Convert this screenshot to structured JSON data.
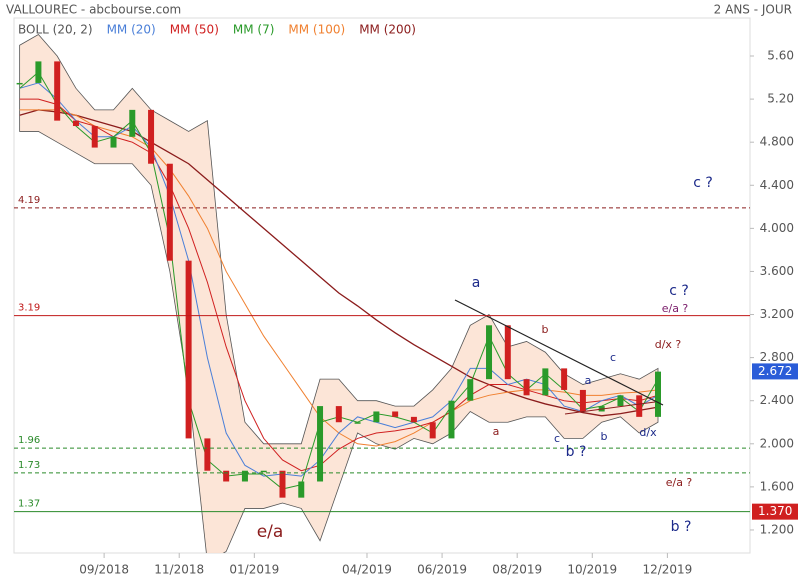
{
  "chart_data": {
    "type": "stock",
    "title": "VALLOUREC - abcbourse.com",
    "subtitle": "2 ANS - JOUR",
    "x": [
      5.75,
      6.25,
      6.75,
      7.25,
      7.75,
      8.25,
      8.75,
      9.25,
      9.75,
      10.25,
      10.75,
      11.25,
      11.75,
      12.25,
      12.75,
      13.25,
      13.75,
      14.25,
      14.75,
      15.25,
      15.75,
      16.25,
      16.75,
      17.25,
      17.75,
      18.25,
      18.75,
      19.25,
      19.75,
      20.25,
      20.75,
      21.25,
      21.75,
      22.25,
      22.75
    ],
    "xlim": [
      5.6,
      25.2
    ],
    "xticks": [
      {
        "value": 8,
        "label": "09/2018"
      },
      {
        "value": 10,
        "label": "11/2018"
      },
      {
        "value": 12,
        "label": "01/2019"
      },
      {
        "value": 15,
        "label": "04/2019"
      },
      {
        "value": 17,
        "label": "06/2019"
      },
      {
        "value": 19,
        "label": "08/2019"
      },
      {
        "value": 21,
        "label": "10/2019"
      },
      {
        "value": 23,
        "label": "12/2019"
      }
    ],
    "ylim": [
      1.014,
      6.12
    ],
    "yticks": [
      {
        "value": 1.2,
        "label": "1.200"
      },
      {
        "value": 1.6,
        "label": "1.600"
      },
      {
        "value": 2,
        "label": "2.000"
      },
      {
        "value": 2.4,
        "label": "2.400"
      },
      {
        "value": 2.8,
        "label": "2.800"
      },
      {
        "value": 3.2,
        "label": "3.200"
      },
      {
        "value": 3.6,
        "label": "3.600"
      },
      {
        "value": 4,
        "label": "4.000"
      },
      {
        "value": 4.4,
        "label": "4.400"
      },
      {
        "value": 4.8,
        "label": "4.800"
      },
      {
        "value": 5.2,
        "label": "5.20"
      },
      {
        "value": 5.6,
        "label": "5.60"
      }
    ],
    "close": {
      "up_color": "#2a9a2a",
      "down_color": "#d02020",
      "values": [
        5.35,
        5.55,
        5.0,
        4.95,
        4.75,
        4.85,
        5.1,
        4.6,
        3.7,
        2.05,
        1.75,
        1.65,
        1.75,
        1.75,
        1.5,
        1.65,
        2.35,
        2.2,
        2.2,
        2.3,
        2.25,
        2.2,
        2.05,
        2.4,
        2.6,
        3.1,
        2.6,
        2.45,
        2.7,
        2.5,
        2.3,
        2.35,
        2.45,
        2.25,
        2.67
      ]
    },
    "bollinger": {
      "name": "BOLL (20, 2)",
      "color": "#555555",
      "fill": "#fbe0d0",
      "upper": [
        5.7,
        5.8,
        5.6,
        5.3,
        5.1,
        5.1,
        5.3,
        5.1,
        5.0,
        4.9,
        5.0,
        3.2,
        2.2,
        2.0,
        2.0,
        2.0,
        2.6,
        2.6,
        2.4,
        2.4,
        2.35,
        2.35,
        2.5,
        2.7,
        3.1,
        3.2,
        2.9,
        2.95,
        2.85,
        2.65,
        2.55,
        2.6,
        2.65,
        2.6,
        2.7
      ],
      "lower": [
        4.9,
        4.9,
        4.8,
        4.7,
        4.6,
        4.6,
        4.6,
        4.4,
        3.6,
        2.5,
        0.9,
        1.0,
        1.4,
        1.4,
        1.45,
        1.4,
        1.1,
        1.6,
        2.1,
        2.0,
        1.95,
        2.05,
        2.0,
        2.1,
        2.3,
        2.2,
        2.2,
        2.25,
        2.25,
        2.05,
        2.05,
        2.2,
        2.25,
        2.1,
        2.2
      ]
    },
    "series": [
      {
        "name": "MM (20)",
        "color": "#4a7fd8",
        "values": [
          5.3,
          5.35,
          5.2,
          5.0,
          4.85,
          4.85,
          4.95,
          4.75,
          4.3,
          3.7,
          2.8,
          2.1,
          1.8,
          1.7,
          1.72,
          1.7,
          1.85,
          2.1,
          2.25,
          2.2,
          2.15,
          2.2,
          2.25,
          2.4,
          2.7,
          2.7,
          2.55,
          2.6,
          2.55,
          2.35,
          2.3,
          2.4,
          2.45,
          2.35,
          2.45
        ]
      },
      {
        "name": "MM (50)",
        "color": "#d02020",
        "values": [
          5.2,
          5.2,
          5.15,
          5.0,
          4.95,
          4.85,
          4.8,
          4.7,
          4.4,
          4.0,
          3.5,
          2.9,
          2.4,
          2.05,
          1.85,
          1.75,
          1.8,
          1.95,
          2.05,
          2.1,
          2.12,
          2.15,
          2.2,
          2.3,
          2.45,
          2.55,
          2.55,
          2.5,
          2.45,
          2.4,
          2.38,
          2.4,
          2.42,
          2.4,
          2.45
        ]
      },
      {
        "name": "MM (7)",
        "color": "#2a9a2a",
        "values": [
          5.3,
          5.45,
          5.15,
          4.95,
          4.8,
          4.85,
          5.0,
          4.7,
          3.9,
          2.4,
          1.85,
          1.7,
          1.72,
          1.72,
          1.58,
          1.62,
          2.2,
          2.25,
          2.2,
          2.28,
          2.25,
          2.2,
          2.1,
          2.35,
          2.55,
          3.0,
          2.65,
          2.5,
          2.65,
          2.5,
          2.32,
          2.35,
          2.43,
          2.3,
          2.6
        ]
      },
      {
        "name": "MM (100)",
        "color": "#f08030",
        "values": [
          5.1,
          5.1,
          5.1,
          5.05,
          4.95,
          4.9,
          4.85,
          4.75,
          4.55,
          4.3,
          4.0,
          3.6,
          3.3,
          3.0,
          2.75,
          2.5,
          2.25,
          2.1,
          2.0,
          1.98,
          2.02,
          2.1,
          2.2,
          2.3,
          2.4,
          2.45,
          2.48,
          2.5,
          2.5,
          2.48,
          2.45,
          2.45,
          2.47,
          2.48,
          2.5
        ]
      },
      {
        "name": "MM (200)",
        "color": "#8b1c1c",
        "values": [
          5.05,
          5.1,
          5.08,
          5.05,
          5.0,
          4.95,
          4.9,
          4.8,
          4.7,
          4.6,
          4.45,
          4.3,
          4.15,
          4.0,
          3.85,
          3.7,
          3.55,
          3.4,
          3.28,
          3.15,
          3.03,
          2.92,
          2.82,
          2.72,
          2.62,
          2.55,
          2.48,
          2.42,
          2.37,
          2.33,
          2.29,
          2.26,
          2.28,
          2.31,
          2.34
        ]
      }
    ],
    "levels": [
      {
        "value": 4.19,
        "color": "#8b1c1c",
        "style": "dashed"
      },
      {
        "value": 3.19,
        "color": "#c01818",
        "style": "solid"
      },
      {
        "value": 1.96,
        "color": "#2a8a2a",
        "style": "dashed"
      },
      {
        "value": 1.73,
        "color": "#2a8a2a",
        "style": "dashed"
      },
      {
        "value": 1.37,
        "color": "#2a8a2a",
        "style": "solid"
      }
    ],
    "markers": [
      {
        "value": 2.672,
        "color": "#2a5cd8"
      },
      {
        "value": 1.37,
        "label": "1.370",
        "color": "#d02020"
      }
    ],
    "annotations": [
      {
        "text": "c ?",
        "color": "#1c2a8a"
      },
      {
        "text": "a",
        "color": "#1c2a8a"
      },
      {
        "text": "c ?",
        "color": "#1c2a8a"
      },
      {
        "text": "e/a ?",
        "color": "#7a1c6a"
      },
      {
        "text": "b",
        "color": "#8b1c1c"
      },
      {
        "text": "d/x ?",
        "color": "#8b1c1c"
      },
      {
        "text": "c",
        "color": "#1c2a8a"
      },
      {
        "text": "a",
        "color": "#1c2a8a"
      },
      {
        "text": "b",
        "color": "#1c2a8a"
      },
      {
        "text": "c",
        "color": "#1c2a8a"
      },
      {
        "text": "a",
        "color": "#8b1c1c"
      },
      {
        "text": "b ?",
        "color": "#1c2a8a"
      },
      {
        "text": "d/x",
        "color": "#1c2a8a"
      },
      {
        "text": "e/a ?",
        "color": "#8b1c1c"
      },
      {
        "text": "b ?",
        "color": "#1c2a8a"
      },
      {
        "text": "e/a",
        "color": "#8b1c1c"
      }
    ]
  }
}
